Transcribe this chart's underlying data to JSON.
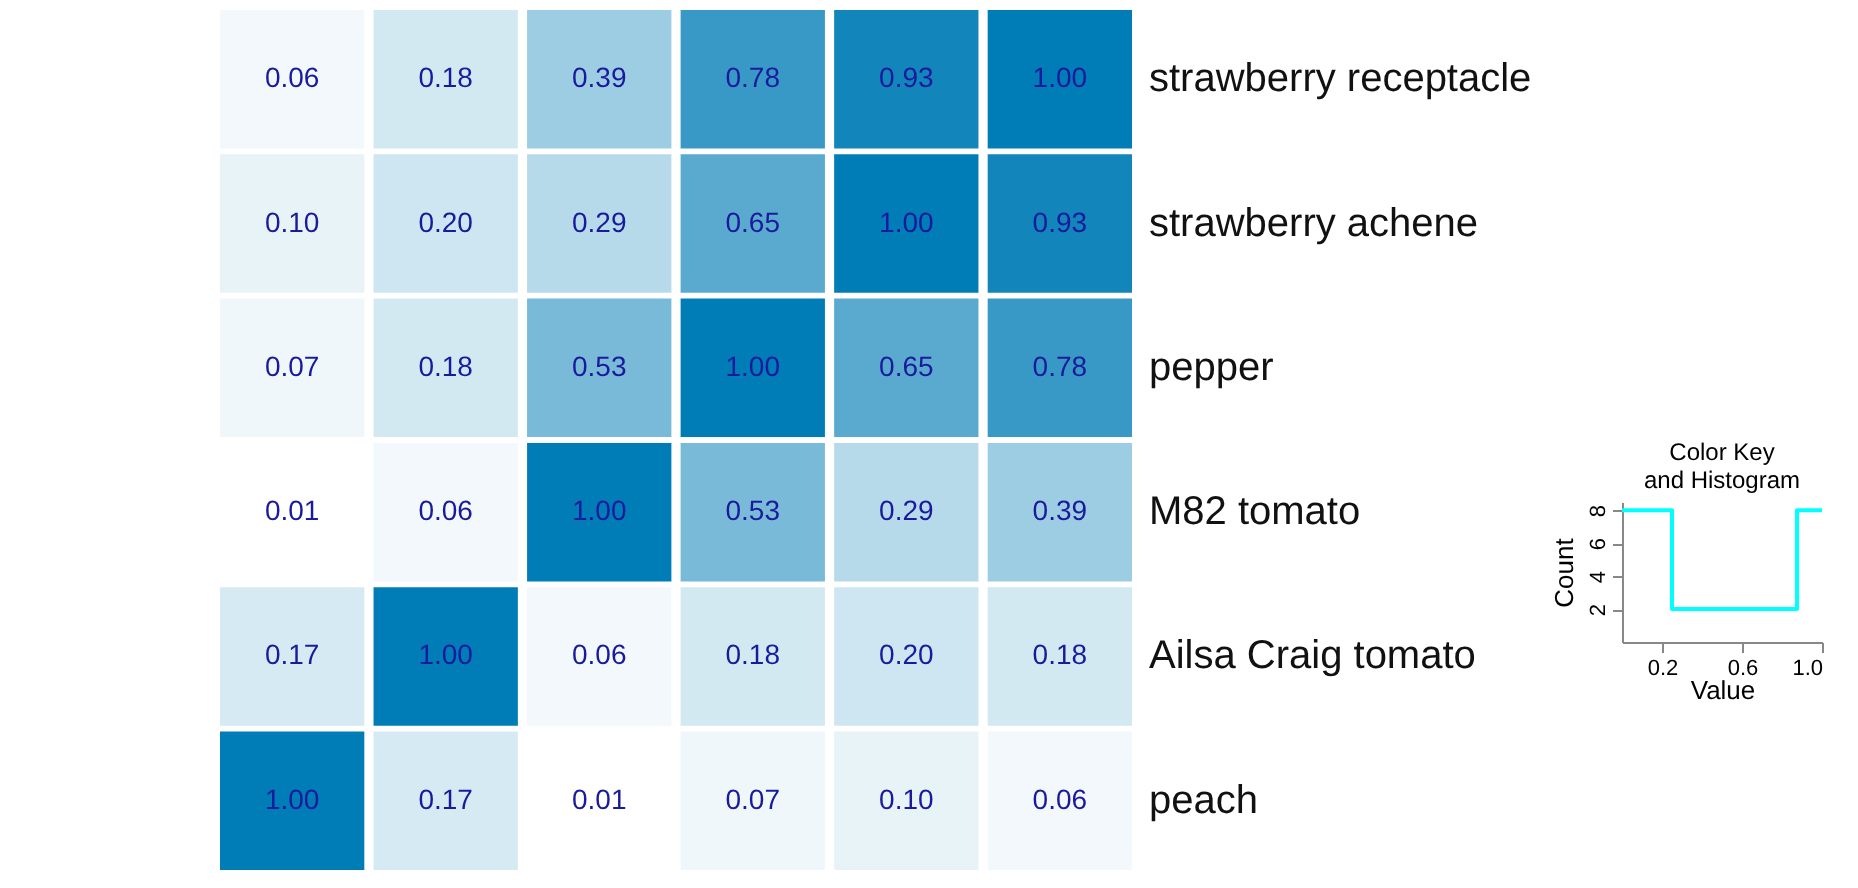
{
  "chart_data": [
    {
      "type": "heatmap",
      "categories": [
        null,
        null,
        null,
        null,
        null,
        null
      ],
      "y_categories": [
        "strawberry receptacle",
        "strawberry achene",
        "pepper",
        "M82 tomato",
        "Ailsa Craig tomato",
        "peach"
      ],
      "cells": [
        [
          0.06,
          0.18,
          0.39,
          0.78,
          0.93,
          1.0
        ],
        [
          0.1,
          0.2,
          0.29,
          0.65,
          1.0,
          0.93
        ],
        [
          0.07,
          0.18,
          0.53,
          1.0,
          0.65,
          0.78
        ],
        [
          0.01,
          0.06,
          1.0,
          0.53,
          0.29,
          0.39
        ],
        [
          0.17,
          1.0,
          0.06,
          0.18,
          0.2,
          0.18
        ],
        [
          1.0,
          0.17,
          0.01,
          0.07,
          0.1,
          0.06
        ]
      ],
      "cell_labels": [
        [
          "0.06",
          "0.18",
          "0.39",
          "0.78",
          "0.93",
          "1.00"
        ],
        [
          "0.10",
          "0.20",
          "0.29",
          "0.65",
          "1.00",
          "0.93"
        ],
        [
          "0.07",
          "0.18",
          "0.53",
          "1.00",
          "0.65",
          "0.78"
        ],
        [
          "0.01",
          "0.06",
          "1.00",
          "0.53",
          "0.29",
          "0.39"
        ],
        [
          "0.17",
          "1.00",
          "0.06",
          "0.18",
          "0.20",
          "0.18"
        ],
        [
          "1.00",
          "0.17",
          "0.01",
          "0.07",
          "0.10",
          "0.06"
        ]
      ]
    },
    {
      "type": "histogram",
      "title": "Color Key\nand Histogram",
      "xlabel": "Value",
      "ylabel": "Count",
      "bins": [
        0,
        0.25,
        0.875,
        1
      ],
      "values": [
        8,
        2,
        8
      ],
      "color": "#00ffff",
      "xlim": [
        0,
        1
      ],
      "xticks": [
        0.2,
        0.6,
        {
          "value": 1,
          "label": "1.0"
        }
      ],
      "ylim": [
        0,
        8.5
      ],
      "yticks": [
        2,
        4,
        6,
        8
      ]
    }
  ]
}
